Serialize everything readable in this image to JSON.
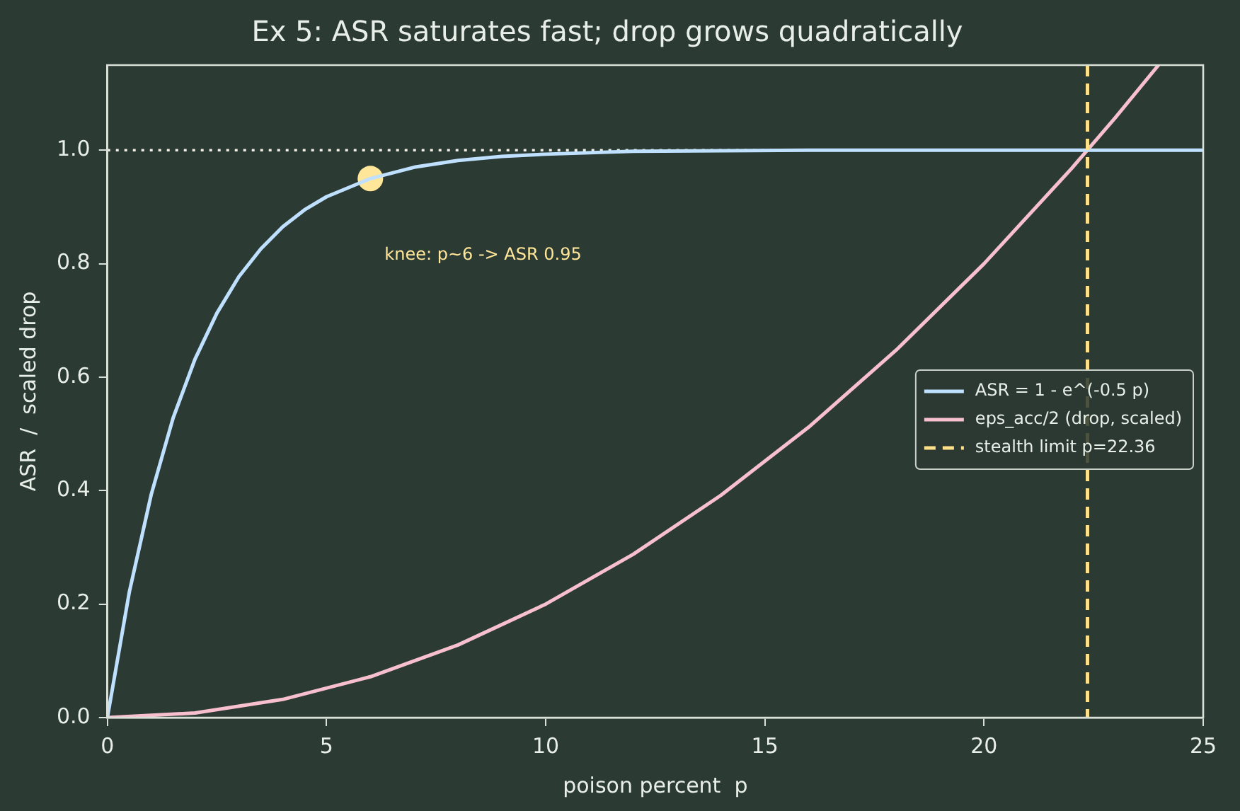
{
  "chart_data": {
    "type": "line",
    "title": "Ex 5: ASR saturates fast; drop grows quadratically",
    "xlabel": "poison percent  p",
    "ylabel": "ASR  /  scaled drop",
    "xlim": [
      0,
      25
    ],
    "ylim": [
      0,
      1.15
    ],
    "xticks": [
      0,
      5,
      10,
      15,
      20,
      25
    ],
    "yticks": [
      {
        "value": 0,
        "label": "0.0"
      },
      {
        "value": 0.2,
        "label": "0.2"
      },
      {
        "value": 0.4,
        "label": "0.4"
      },
      {
        "value": 0.6,
        "label": "0.6"
      },
      {
        "value": 0.8,
        "label": "0.8"
      },
      {
        "value": 1,
        "label": "1.0"
      }
    ],
    "grid": false,
    "legend": "right",
    "series": [
      {
        "name": "ASR = 1 - e^(-0.5 p)",
        "color": "#bfe0ff",
        "marker": "none",
        "x": [
          0,
          0.5,
          1,
          1.5,
          2,
          2.5,
          3,
          3.5,
          4,
          4.5,
          5,
          6,
          7,
          8,
          9,
          10,
          12,
          14,
          16,
          20,
          25
        ],
        "values": [
          0,
          0.221,
          0.393,
          0.528,
          0.632,
          0.713,
          0.777,
          0.826,
          0.865,
          0.895,
          0.918,
          0.95,
          0.97,
          0.982,
          0.989,
          0.993,
          0.998,
          0.999,
          1,
          1,
          1
        ]
      },
      {
        "name": "eps_acc/2 (drop, scaled)",
        "color": "#f8c0cf",
        "marker": "none",
        "x": [
          0,
          2,
          4,
          6,
          8,
          10,
          12,
          14,
          16,
          18,
          20,
          22,
          23,
          23.98
        ],
        "values": [
          0,
          0.008,
          0.032,
          0.072,
          0.128,
          0.2,
          0.288,
          0.392,
          0.512,
          0.648,
          0.8,
          0.968,
          1.058,
          1.15
        ]
      },
      {
        "type": "scatter",
        "color": "#ffe699",
        "marker": "circle",
        "x": [
          6
        ],
        "values": [
          0.95
        ]
      }
    ],
    "ref_lines": [
      {
        "axis": "y",
        "value": 1,
        "color": "#f0f0e8",
        "line_style": "dotted"
      },
      {
        "axis": "x",
        "value": 22.36,
        "label": "stealth limit p=22.36",
        "color": "#ffe08a",
        "line_style": "dashed"
      }
    ],
    "annotations": [
      "knee: p~6 -> ASR 0.95"
    ]
  }
}
